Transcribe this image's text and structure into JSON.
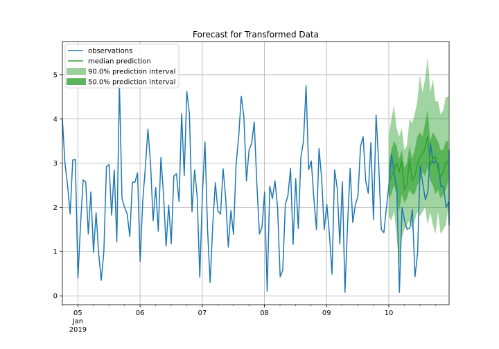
{
  "chart_data": {
    "type": "line",
    "title": "Forecast for Transformed Data",
    "xlabel": "",
    "ylabel": "",
    "x_range_days": [
      4.75,
      10.97
    ],
    "ylim": [
      -0.2,
      5.75
    ],
    "grid": true,
    "legend_placement": "upper-left",
    "x_ticks": [
      {
        "day": 5,
        "label": "05",
        "sublabel_1": "Jan",
        "sublabel_2": "2019"
      },
      {
        "day": 6,
        "label": "06"
      },
      {
        "day": 7,
        "label": "07"
      },
      {
        "day": 8,
        "label": "08"
      },
      {
        "day": 9,
        "label": "09"
      },
      {
        "day": 10,
        "label": "10"
      }
    ],
    "y_ticks": [
      0,
      1,
      2,
      3,
      4,
      5
    ],
    "legend": [
      {
        "label": "observations",
        "kind": "line",
        "color": "#1f77b4"
      },
      {
        "label": "median prediction",
        "kind": "line",
        "color": "#2ca02c"
      },
      {
        "label": "90.0% prediction interval",
        "kind": "patch",
        "color": "#9bd09b"
      },
      {
        "label": "50.0% prediction interval",
        "kind": "patch",
        "color": "#5cb35c"
      }
    ],
    "colors": {
      "observations": "#1f77b4",
      "median": "#2ca02c",
      "interval90": "#2ca02c",
      "interval50": "#2ca02c",
      "grid": "#b0b0b0"
    },
    "observations": {
      "x_start": 4.75,
      "x_step": 0.0417,
      "values": [
        4.0,
        3.0,
        2.5,
        1.85,
        3.07,
        3.08,
        0.4,
        1.6,
        2.62,
        2.58,
        1.4,
        2.35,
        0.98,
        1.88,
        0.96,
        0.35,
        1.0,
        2.92,
        2.97,
        1.82,
        2.85,
        1.22,
        4.8,
        2.2,
        2.0,
        1.85,
        1.34,
        2.57,
        2.57,
        2.78,
        0.78,
        2.15,
        2.9,
        3.77,
        3.0,
        1.7,
        2.45,
        1.46,
        3.13,
        2.3,
        1.12,
        2.05,
        1.18,
        2.71,
        2.76,
        2.13,
        4.12,
        2.72,
        4.62,
        4.12,
        1.9,
        2.85,
        2.24,
        0.42,
        2.3,
        3.48,
        1.5,
        0.3,
        1.6,
        2.56,
        1.92,
        1.85,
        2.87,
        2.2,
        1.1,
        1.93,
        1.39,
        2.97,
        3.6,
        4.51,
        4.05,
        2.6,
        3.3,
        3.45,
        3.93,
        2.55,
        1.4,
        1.55,
        2.35,
        0.1,
        2.48,
        2.2,
        2.6,
        2.0,
        0.43,
        0.58,
        2.07,
        2.27,
        2.88,
        1.16,
        2.65,
        1.52,
        3.14,
        3.5,
        4.75,
        2.85,
        3.05,
        2.2,
        1.5,
        3.33,
        2.66,
        1.5,
        2.07,
        1.4,
        0.49,
        2.85,
        2.44,
        1.17,
        2.58,
        0.08,
        1.61,
        2.88,
        1.66,
        2.06,
        2.25,
        3.38,
        3.6,
        2.6,
        2.32,
        3.47,
        1.72,
        4.09,
        3.0,
        1.5,
        1.43,
        2.0,
        2.55,
        3.2,
        2.75,
        2.42,
        0.08,
        2.0,
        1.7,
        1.5,
        1.54,
        1.95,
        0.43,
        0.96,
        2.94,
        2.55,
        2.17,
        2.35,
        3.45,
        3.0,
        3.05,
        2.97,
        2.47,
        2.47,
        2.0,
        2.12,
        1.6,
        3.3
      ]
    },
    "forecast": {
      "x_start": 10.0,
      "x_step": 0.0417,
      "median": [
        2.55,
        2.7,
        2.85,
        3.0,
        2.8,
        3.05,
        2.4,
        2.5,
        3.1,
        2.6,
        2.7,
        2.95,
        3.15,
        3.2,
        3.35,
        3.6,
        2.95,
        3.1,
        3.15,
        2.85,
        2.7,
        2.8,
        3.0,
        3.05
      ],
      "q05": [
        1.8,
        1.7,
        1.9,
        1.4,
        0.6,
        1.3,
        1.5,
        1.6,
        1.7,
        1.5,
        1.7,
        1.9,
        1.8,
        1.9,
        2.0,
        1.6,
        1.9,
        1.6,
        1.4,
        1.9,
        1.4,
        1.5,
        1.6,
        2.0
      ],
      "q25": [
        2.2,
        2.3,
        2.5,
        2.3,
        1.9,
        2.3,
        2.1,
        2.2,
        2.4,
        2.3,
        2.3,
        2.5,
        2.6,
        2.8,
        2.7,
        2.9,
        2.6,
        2.5,
        2.3,
        2.4,
        2.2,
        2.3,
        2.4,
        2.6
      ],
      "q75": [
        3.0,
        3.3,
        3.5,
        3.4,
        3.1,
        3.3,
        2.9,
        3.0,
        3.4,
        3.1,
        3.3,
        3.6,
        3.7,
        3.6,
        3.9,
        4.2,
        3.5,
        3.7,
        3.6,
        3.5,
        3.3,
        3.3,
        3.5,
        3.5
      ],
      "q95": [
        3.6,
        4.0,
        4.3,
        3.8,
        3.6,
        3.8,
        3.3,
        3.4,
        4.0,
        3.9,
        4.1,
        4.4,
        5.0,
        4.6,
        4.9,
        5.4,
        4.6,
        4.9,
        4.4,
        4.4,
        4.1,
        4.2,
        4.5,
        4.5
      ]
    }
  }
}
